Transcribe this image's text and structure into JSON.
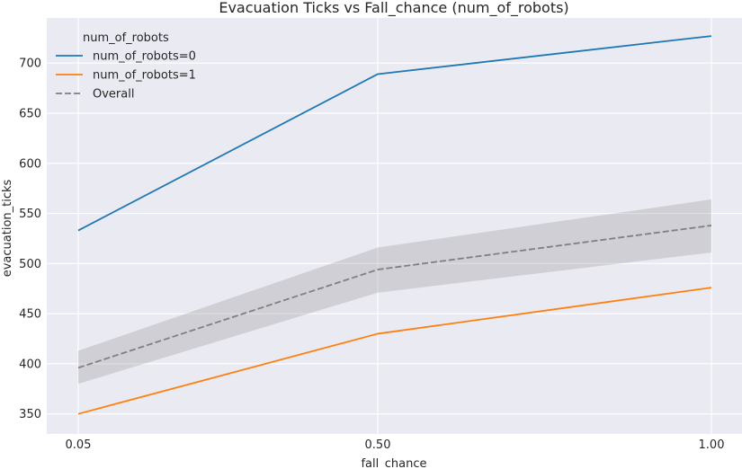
{
  "chart_data": {
    "type": "line",
    "title": "Evacuation Ticks vs Fall_chance (num_of_robots)",
    "xlabel": "fall_chance",
    "ylabel": "evacuation_ticks",
    "x_ticks": [
      "0.05",
      "0.50",
      "1.00"
    ],
    "y_ticks": [
      350,
      400,
      450,
      500,
      550,
      600,
      650,
      700
    ],
    "x_categories": [
      "0.05",
      "0.50",
      "1.00"
    ],
    "ylim": [
      330,
      745
    ],
    "grid": true,
    "legend": {
      "title": "num_of_robots",
      "placement": "top-left"
    },
    "series": [
      {
        "name": "num_of_robots=0",
        "color": "#1f77b4",
        "style": "solid",
        "values": [
          533,
          689,
          727
        ]
      },
      {
        "name": "num_of_robots=1",
        "color": "#ff7f0e",
        "style": "solid",
        "values": [
          350,
          430,
          476
        ]
      },
      {
        "name": "Overall",
        "color": "#808080",
        "style": "dashed",
        "values": [
          396,
          494,
          538
        ],
        "ci_lower": [
          380,
          471,
          511
        ],
        "ci_upper": [
          413,
          516,
          564
        ]
      }
    ],
    "background_color": "#eaeaf2"
  }
}
